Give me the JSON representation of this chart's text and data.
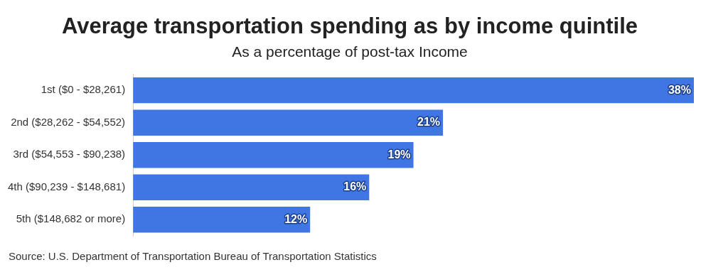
{
  "chart_data": {
    "type": "bar",
    "orientation": "horizontal",
    "title": "Average transportation spending as by income quintile",
    "subtitle": "As a percentage of post-tax Income",
    "categories": [
      "1st ($0 - $28,261)",
      "2nd ($28,262 - $54,552)",
      "3rd ($54,553 - $90,238)",
      "4th ($90,239 - $148,681)",
      "5th ($148,682 or more)"
    ],
    "values": [
      38,
      21,
      19,
      16,
      12
    ],
    "color": "#3f76e4",
    "value_labels": [
      "38%",
      "21%",
      "19%",
      "16%",
      "12%"
    ],
    "annotations": [
      "Source: U.S. Department of Transportation Bureau of Transportation Statistics"
    ]
  }
}
